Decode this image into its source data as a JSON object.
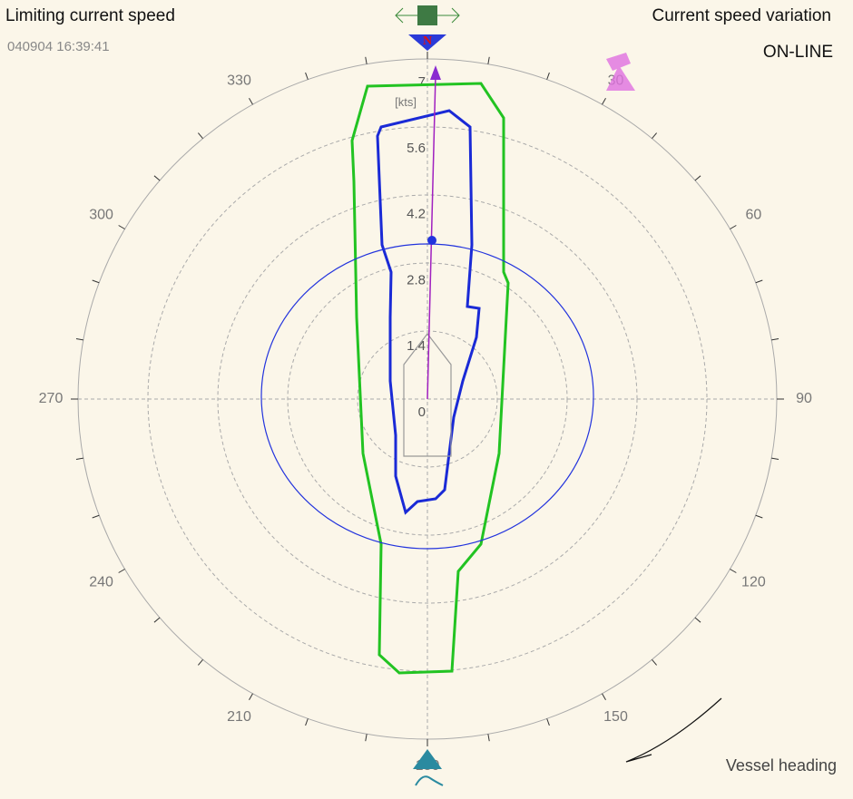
{
  "header": {
    "left_title": "Limiting current speed",
    "timestamp": "040904 16:39:41",
    "right_title": "Current speed variation",
    "status": "ON-LINE"
  },
  "polar": {
    "unit": "[kts]",
    "radial_labels": [
      0,
      1.4,
      2.8,
      4.2,
      5.6,
      7
    ],
    "rmax": 7,
    "angle_labels": [
      330,
      300,
      270,
      240,
      210,
      180,
      150,
      120,
      90,
      60,
      30
    ],
    "north_marker": "N"
  },
  "legend": {
    "heading": "Vessel heading"
  }
}
